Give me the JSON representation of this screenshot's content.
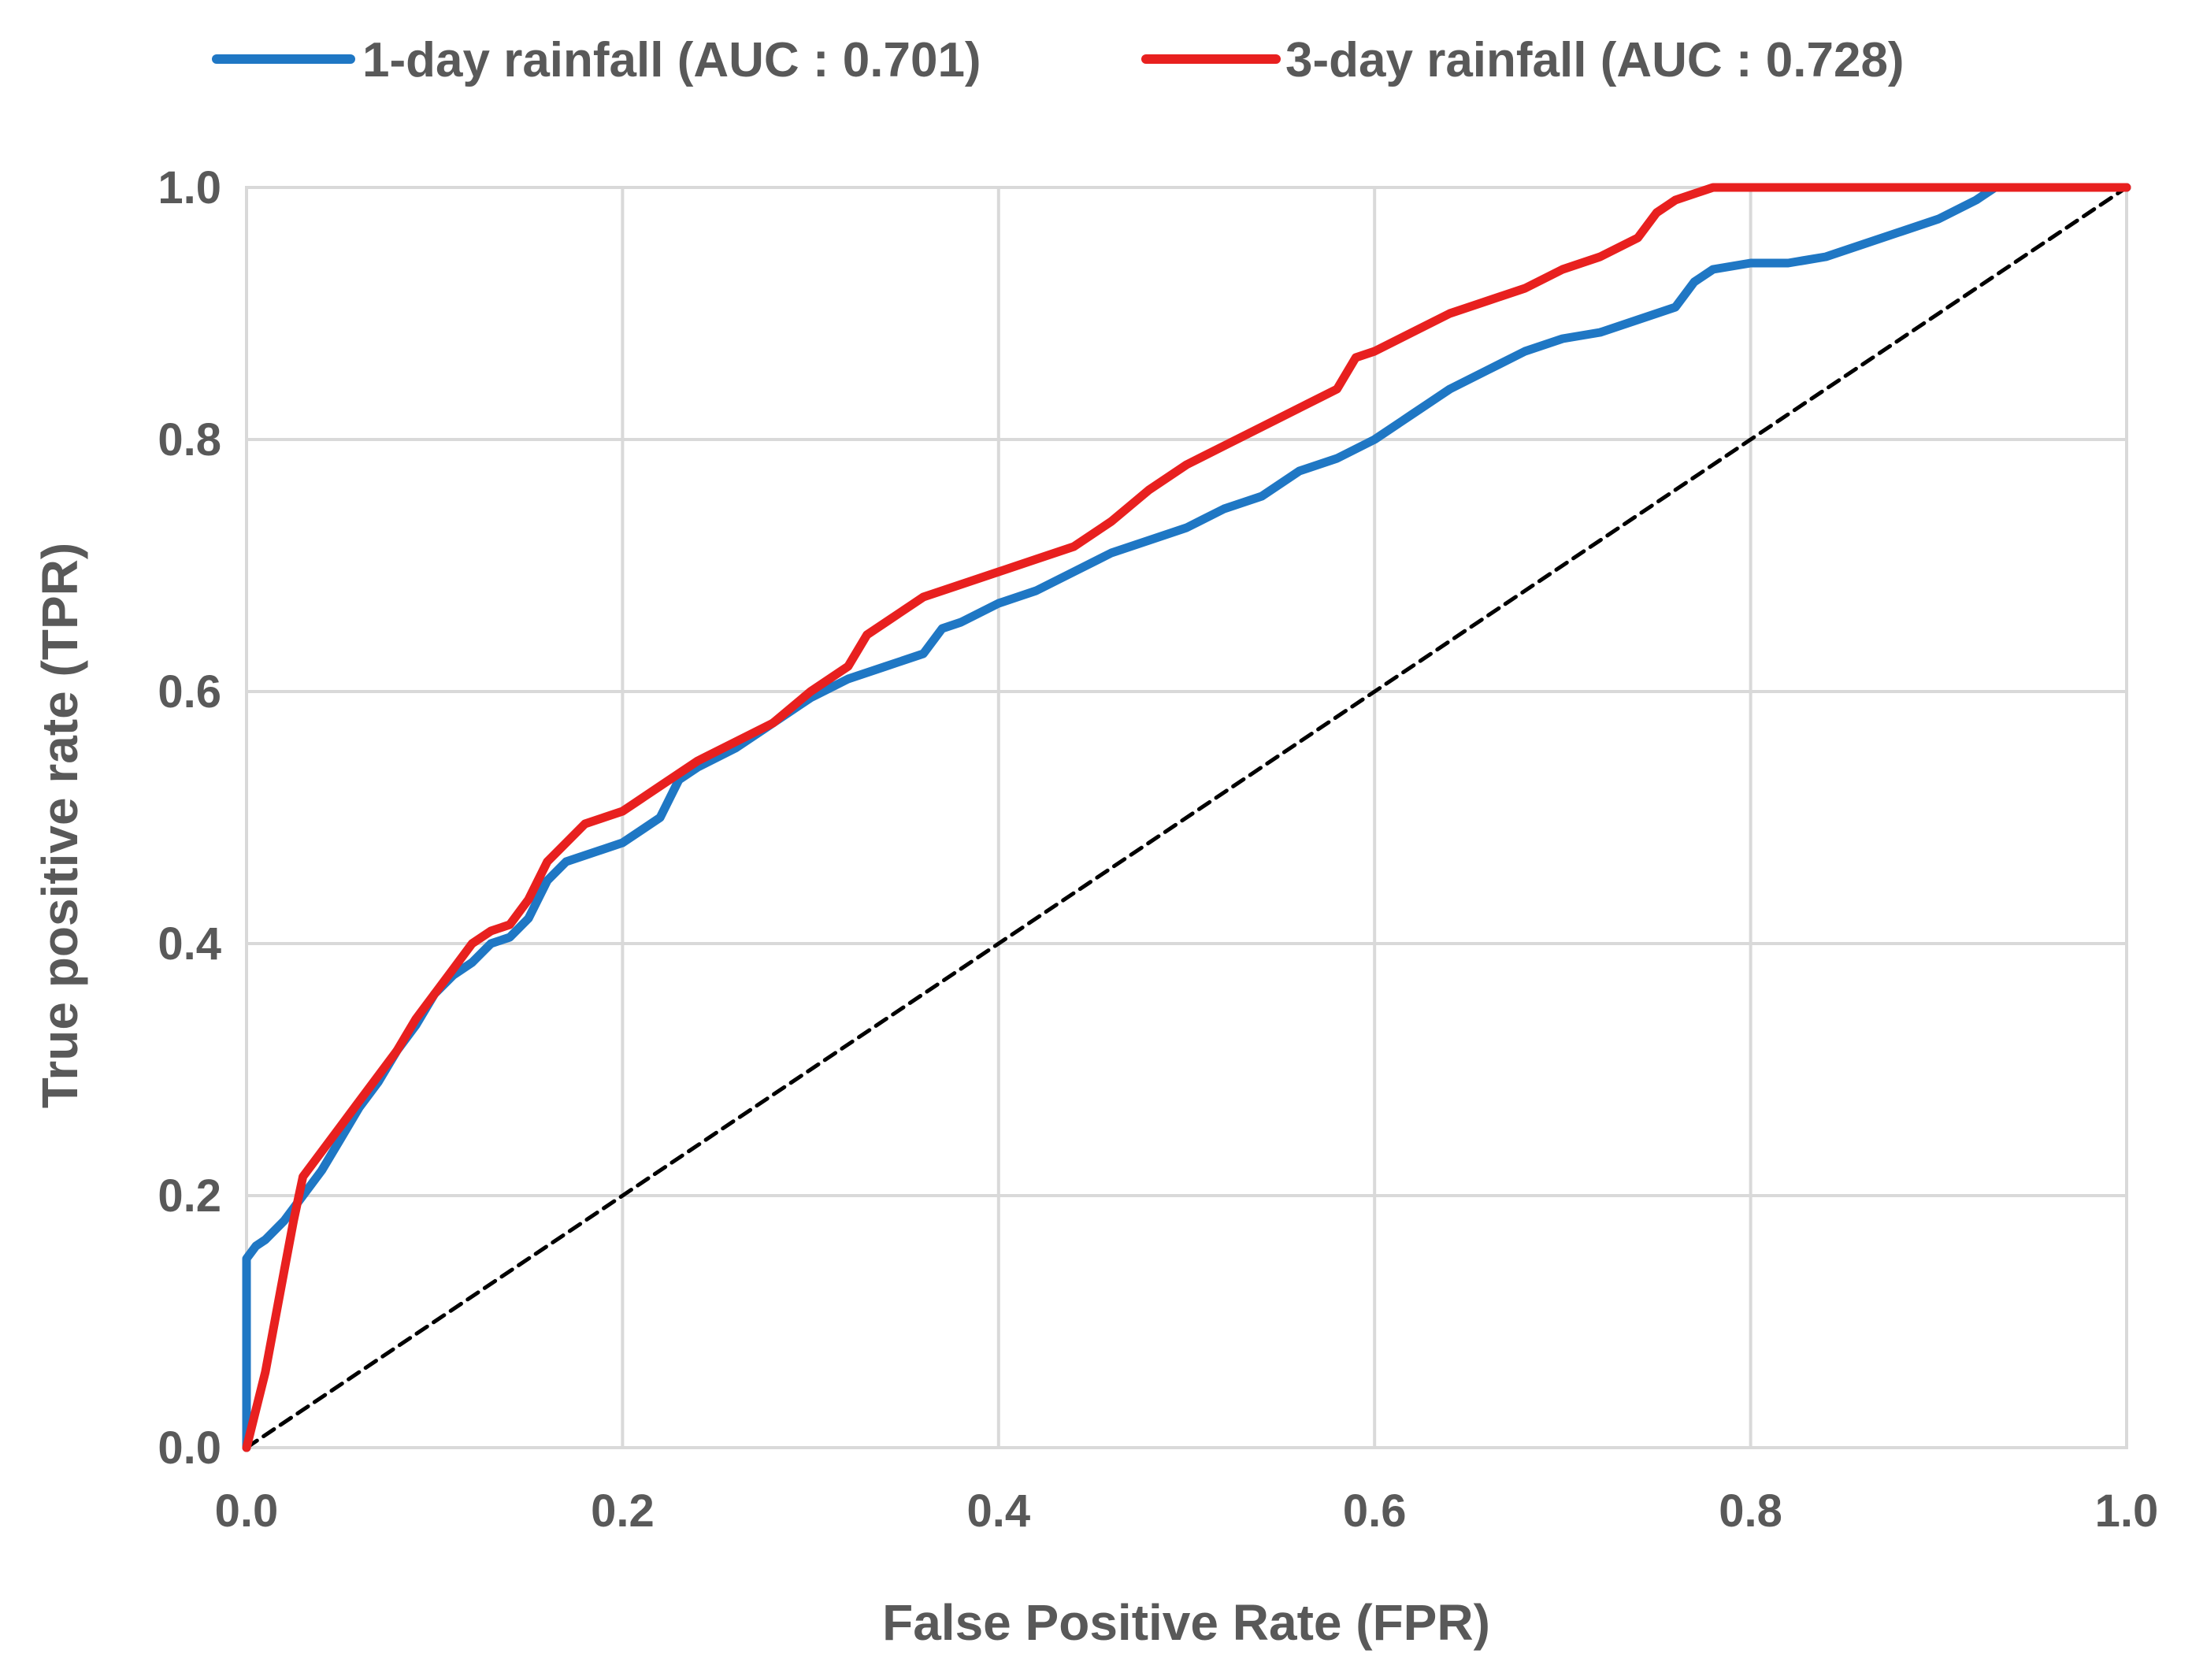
{
  "chart_data": {
    "type": "line",
    "title": "",
    "xlabel": "False Positive Rate (FPR)",
    "ylabel": "True positive rate (TPR)",
    "xlim": [
      0,
      1
    ],
    "ylim": [
      0,
      1
    ],
    "grid": true,
    "legend_position": "top",
    "x_ticks": [
      "0.0",
      "0.2",
      "0.4",
      "0.6",
      "0.8",
      "1.0"
    ],
    "y_ticks": [
      "0.0",
      "0.2",
      "0.4",
      "0.6",
      "0.8",
      "1.0"
    ],
    "series": [
      {
        "name": "1-day rainfall (AUC : 0.701)",
        "color": "#1f77c4",
        "style": "solid",
        "x": [
          0,
          0,
          0.005,
          0.01,
          0.02,
          0.03,
          0.04,
          0.05,
          0.06,
          0.07,
          0.08,
          0.09,
          0.1,
          0.11,
          0.12,
          0.13,
          0.14,
          0.15,
          0.16,
          0.17,
          0.18,
          0.2,
          0.21,
          0.22,
          0.23,
          0.24,
          0.26,
          0.28,
          0.3,
          0.32,
          0.34,
          0.36,
          0.37,
          0.38,
          0.4,
          0.42,
          0.44,
          0.46,
          0.48,
          0.5,
          0.52,
          0.54,
          0.56,
          0.58,
          0.6,
          0.62,
          0.64,
          0.66,
          0.68,
          0.7,
          0.72,
          0.74,
          0.76,
          0.77,
          0.78,
          0.8,
          0.82,
          0.84,
          0.86,
          0.88,
          0.9,
          0.92,
          0.93,
          1.0
        ],
        "y": [
          0,
          0.15,
          0.16,
          0.165,
          0.18,
          0.2,
          0.22,
          0.245,
          0.27,
          0.29,
          0.315,
          0.335,
          0.36,
          0.375,
          0.385,
          0.4,
          0.405,
          0.42,
          0.45,
          0.465,
          0.47,
          0.48,
          0.49,
          0.5,
          0.53,
          0.54,
          0.555,
          0.575,
          0.595,
          0.61,
          0.62,
          0.63,
          0.65,
          0.655,
          0.67,
          0.68,
          0.695,
          0.71,
          0.72,
          0.73,
          0.745,
          0.755,
          0.775,
          0.785,
          0.8,
          0.82,
          0.84,
          0.855,
          0.87,
          0.88,
          0.885,
          0.895,
          0.905,
          0.925,
          0.935,
          0.94,
          0.94,
          0.945,
          0.955,
          0.965,
          0.975,
          0.99,
          1.0,
          1.0
        ]
      },
      {
        "name": "3-day rainfall (AUC : 0.728)",
        "color": "#e8201f",
        "style": "solid",
        "x": [
          0,
          0.005,
          0.01,
          0.015,
          0.02,
          0.025,
          0.03,
          0.04,
          0.05,
          0.06,
          0.07,
          0.08,
          0.09,
          0.1,
          0.11,
          0.12,
          0.13,
          0.14,
          0.15,
          0.16,
          0.17,
          0.18,
          0.19,
          0.2,
          0.21,
          0.22,
          0.24,
          0.26,
          0.28,
          0.3,
          0.32,
          0.33,
          0.34,
          0.36,
          0.38,
          0.4,
          0.42,
          0.44,
          0.46,
          0.48,
          0.5,
          0.52,
          0.54,
          0.56,
          0.58,
          0.59,
          0.6,
          0.62,
          0.64,
          0.66,
          0.68,
          0.7,
          0.72,
          0.74,
          0.75,
          0.76,
          0.78,
          0.79,
          1.0
        ],
        "y": [
          0,
          0.03,
          0.06,
          0.1,
          0.14,
          0.18,
          0.215,
          0.235,
          0.255,
          0.275,
          0.295,
          0.315,
          0.34,
          0.36,
          0.38,
          0.4,
          0.41,
          0.415,
          0.435,
          0.465,
          0.48,
          0.495,
          0.5,
          0.505,
          0.515,
          0.525,
          0.545,
          0.56,
          0.575,
          0.6,
          0.62,
          0.645,
          0.655,
          0.675,
          0.685,
          0.695,
          0.705,
          0.715,
          0.735,
          0.76,
          0.78,
          0.795,
          0.81,
          0.825,
          0.84,
          0.865,
          0.87,
          0.885,
          0.9,
          0.91,
          0.92,
          0.935,
          0.945,
          0.96,
          0.98,
          0.99,
          1.0,
          1.0,
          1.0
        ]
      },
      {
        "name": "reference",
        "color": "#000000",
        "style": "dashed",
        "x": [
          0,
          1
        ],
        "y": [
          0,
          1
        ]
      }
    ]
  }
}
